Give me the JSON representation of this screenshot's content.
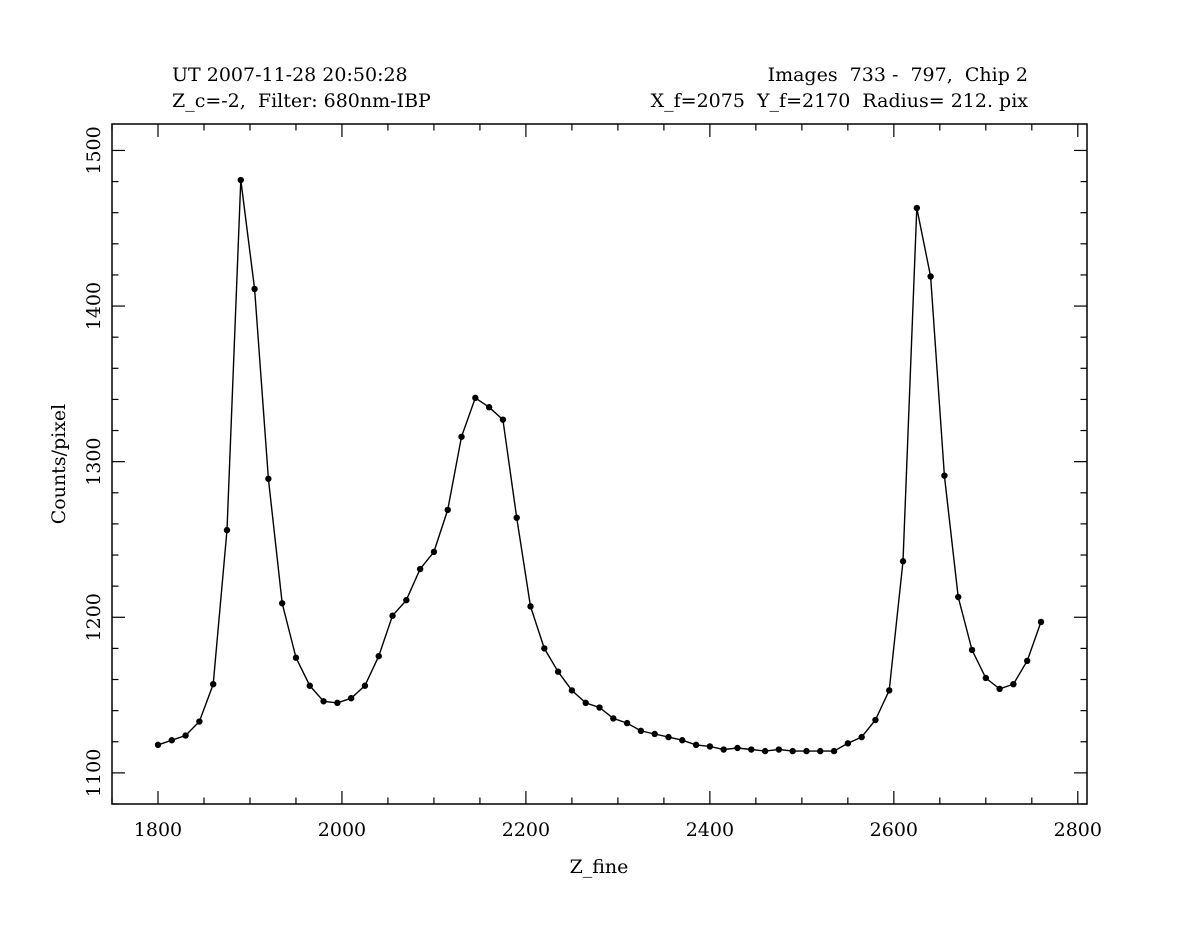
{
  "header": {
    "left_line1": "UT 2007-11-28 20:50:28",
    "left_line2": "Z_c=-2,  Filter: 680nm-IBP",
    "right_line1": "Images  733 -  797,  Chip 2",
    "right_line2": "X_f=2075  Y_f=2170  Radius= 212. pix"
  },
  "chart_data": {
    "type": "line",
    "title": "",
    "xlabel": "Z_fine",
    "ylabel": "Counts/pixel",
    "xlim": [
      1750,
      2810
    ],
    "ylim": [
      1080,
      1517
    ],
    "x_ticks": [
      1800,
      2000,
      2200,
      2400,
      2600,
      2800
    ],
    "y_ticks": [
      1100,
      1200,
      1300,
      1400,
      1500
    ],
    "x_minor_step": 50,
    "y_minor_step": 20,
    "markers": true,
    "grid": false,
    "series": [
      {
        "x": [
          1800,
          1815,
          1830,
          1845,
          1860,
          1875,
          1890,
          1905,
          1920,
          1935,
          1950,
          1965,
          1980,
          1995,
          2010,
          2025,
          2040,
          2055,
          2070,
          2085,
          2100,
          2115,
          2130,
          2145,
          2160,
          2175,
          2190,
          2205,
          2220,
          2235,
          2250,
          2265,
          2280,
          2295,
          2310,
          2325,
          2340,
          2355,
          2370,
          2385,
          2400,
          2415,
          2430,
          2445,
          2460,
          2475,
          2490,
          2505,
          2520,
          2535,
          2550,
          2565,
          2580,
          2595,
          2610,
          2625,
          2640,
          2655,
          2670,
          2685,
          2700,
          2715,
          2730,
          2745,
          2760
        ],
        "y": [
          1118,
          1121,
          1124,
          1133,
          1157,
          1256,
          1481,
          1411,
          1289,
          1209,
          1174,
          1156,
          1146,
          1145,
          1148,
          1156,
          1175,
          1201,
          1211,
          1231,
          1242,
          1269,
          1316,
          1341,
          1335,
          1327,
          1264,
          1207,
          1180,
          1165,
          1153,
          1145,
          1142,
          1135,
          1132,
          1127,
          1125,
          1123,
          1121,
          1118,
          1117,
          1115,
          1116,
          1115,
          1114,
          1115,
          1114,
          1114,
          1114,
          1114,
          1119,
          1123,
          1134,
          1153,
          1236,
          1463,
          1419,
          1291,
          1213,
          1179,
          1161,
          1154,
          1157,
          1172,
          1197
        ]
      }
    ]
  }
}
